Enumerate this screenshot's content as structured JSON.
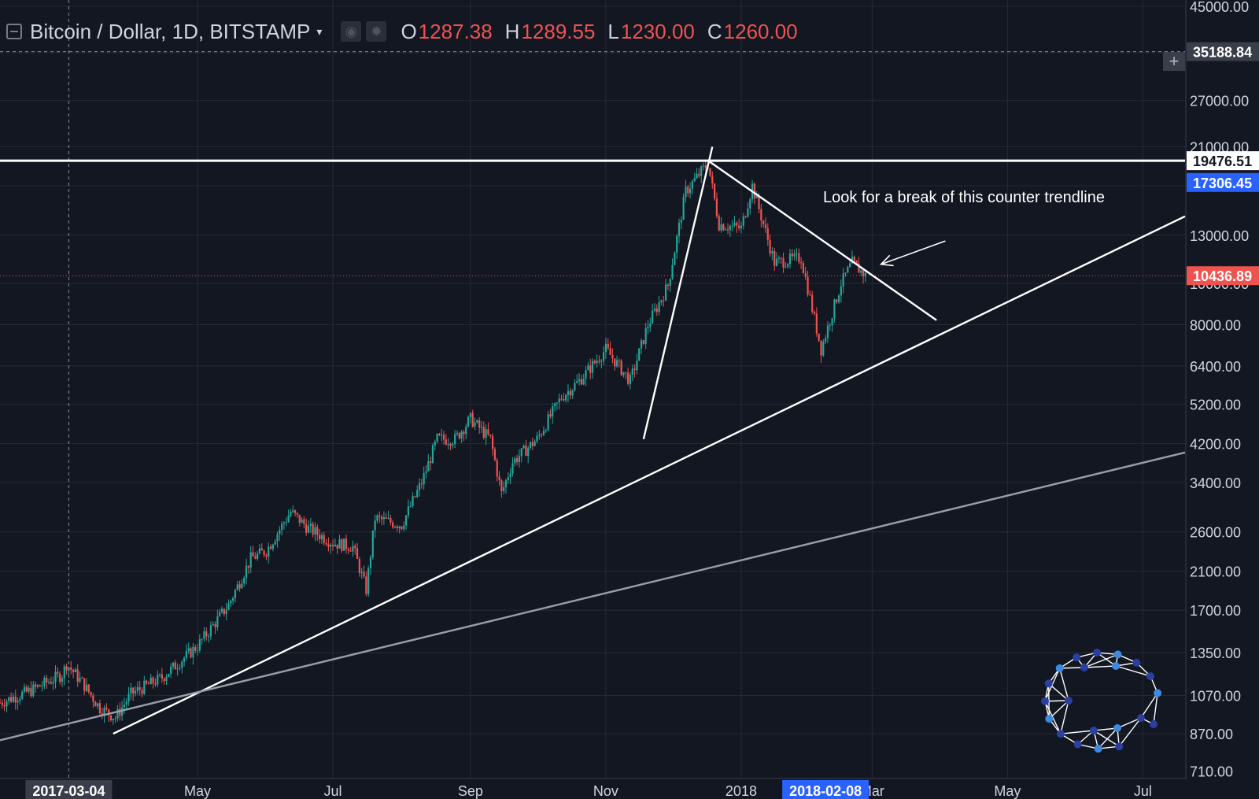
{
  "legend": {
    "symbol_title": "Bitcoin / Dollar, 1D, BITSTAMP",
    "caret": "▾",
    "icons": [
      "eye-icon",
      "gear-icon"
    ],
    "open_key": "O",
    "open_value": "1287.38",
    "high_key": "H",
    "high_value": "1289.55",
    "low_key": "L",
    "low_value": "1230.00",
    "close_key": "C",
    "close_value": "1260.00"
  },
  "crosshair": {
    "plus": "+"
  },
  "annotation": {
    "text": "Look for a break of this counter trendline"
  },
  "colors": {
    "background": "#131722",
    "grid": "#262a36",
    "up_candle": "#26a69a",
    "down_candle": "#ef5350",
    "trendline": "#ffffff",
    "long_trendline": "#9a9ea8",
    "price_line": "#ef5350",
    "highlight_label": "#2962ff"
  },
  "chart_data": {
    "type": "candlestick",
    "symbol": "Bitcoin / Dollar",
    "interval": "1D",
    "exchange": "BITSTAMP",
    "scale": "log",
    "ylim": [
      700,
      45000
    ],
    "xlim": [
      "2017-02-01",
      "2018-07-20"
    ],
    "grid": true,
    "y_axis_side": "right",
    "y_ticks": [
      870,
      1070,
      1350,
      1700,
      2100,
      2600,
      3400,
      4200,
      5200,
      6400,
      8000,
      10000,
      13000,
      17000,
      21000,
      27000,
      35000,
      45000
    ],
    "y_tick_labels": [
      "870.00",
      "1070.00",
      "1350.00",
      "1700.00",
      "2100.00",
      "2600.00",
      "3400.00",
      "4200.00",
      "5200.00",
      "6400.00",
      "8000.00",
      "10000.00",
      "13000.00",
      "17000.00",
      "21000.00",
      "27000.00",
      "35000.00",
      "45000.00"
    ],
    "y_labels_partial": [
      {
        "value": 710,
        "label": "710.00"
      }
    ],
    "x_ticks": [
      {
        "date": "2017-05-01",
        "label": "May"
      },
      {
        "date": "2017-07-01",
        "label": "Jul"
      },
      {
        "date": "2017-09-01",
        "label": "Sep"
      },
      {
        "date": "2017-11-01",
        "label": "Nov"
      },
      {
        "date": "2018-01-01",
        "label": "2018"
      },
      {
        "date": "2018-03-01",
        "label": "Mar"
      },
      {
        "date": "2018-05-01",
        "label": "May"
      },
      {
        "date": "2018-07-01",
        "label": "Jul"
      }
    ],
    "price_labels": [
      {
        "value": 35188.84,
        "label": "35188.84",
        "role": "crosshair"
      },
      {
        "value": 19476.51,
        "label": "19476.51",
        "role": "resistance-line"
      },
      {
        "value": 17306.45,
        "label": "17306.45",
        "role": "highlight"
      },
      {
        "value": 10436.89,
        "label": "10436.89",
        "role": "last-price"
      }
    ],
    "date_labels": [
      {
        "date": "2017-03-04",
        "label": "2017-03-04"
      },
      {
        "date": "2018-02-08",
        "label": "2018-02-08"
      }
    ],
    "crosshair": {
      "date": "2017-03-04",
      "price": 35188.84
    },
    "series": [
      {
        "name": "Bitcoin / Dollar",
        "data": [
          {
            "date": "2017-02-01",
            "close": 1030
          },
          {
            "date": "2017-02-15",
            "close": 1100
          },
          {
            "date": "2017-03-01",
            "close": 1200
          },
          {
            "date": "2017-03-03",
            "close": 1270
          },
          {
            "date": "2017-03-10",
            "close": 1150
          },
          {
            "date": "2017-03-18",
            "close": 1000
          },
          {
            "date": "2017-03-25",
            "close": 950
          },
          {
            "date": "2017-04-01",
            "close": 1080
          },
          {
            "date": "2017-04-15",
            "close": 1180
          },
          {
            "date": "2017-05-01",
            "close": 1400
          },
          {
            "date": "2017-05-15",
            "close": 1750
          },
          {
            "date": "2017-05-25",
            "close": 2250
          },
          {
            "date": "2017-06-01",
            "close": 2350
          },
          {
            "date": "2017-06-12",
            "close": 2900
          },
          {
            "date": "2017-06-20",
            "close": 2650
          },
          {
            "date": "2017-07-01",
            "close": 2450
          },
          {
            "date": "2017-07-10",
            "close": 2400
          },
          {
            "date": "2017-07-16",
            "close": 1900
          },
          {
            "date": "2017-07-20",
            "close": 2800
          },
          {
            "date": "2017-08-01",
            "close": 2700
          },
          {
            "date": "2017-08-10",
            "close": 3400
          },
          {
            "date": "2017-08-17",
            "close": 4300
          },
          {
            "date": "2017-08-25",
            "close": 4300
          },
          {
            "date": "2017-09-01",
            "close": 4800
          },
          {
            "date": "2017-09-10",
            "close": 4300
          },
          {
            "date": "2017-09-15",
            "close": 3200
          },
          {
            "date": "2017-09-20",
            "close": 3800
          },
          {
            "date": "2017-10-01",
            "close": 4300
          },
          {
            "date": "2017-10-12",
            "close": 5400
          },
          {
            "date": "2017-10-20",
            "close": 5900
          },
          {
            "date": "2017-11-01",
            "close": 7000
          },
          {
            "date": "2017-11-12",
            "close": 5900
          },
          {
            "date": "2017-11-20",
            "close": 8000
          },
          {
            "date": "2017-11-29",
            "close": 9900
          },
          {
            "date": "2017-12-07",
            "close": 16500
          },
          {
            "date": "2017-12-17",
            "close": 19200
          },
          {
            "date": "2017-12-22",
            "close": 13800
          },
          {
            "date": "2018-01-01",
            "close": 13500
          },
          {
            "date": "2018-01-06",
            "close": 17000
          },
          {
            "date": "2018-01-16",
            "close": 11200
          },
          {
            "date": "2018-01-28",
            "close": 11500
          },
          {
            "date": "2018-02-06",
            "close": 7000
          },
          {
            "date": "2018-02-15",
            "close": 10000
          },
          {
            "date": "2018-02-20",
            "close": 11200
          },
          {
            "date": "2018-02-26",
            "close": 10436.89
          }
        ]
      }
    ],
    "drawings": [
      {
        "kind": "horizontal-line",
        "name": "resistance-line",
        "price": 19476.51
      },
      {
        "kind": "trendline",
        "name": "long-support-trendline",
        "from": {
          "date": "2017-03-24",
          "price": 870
        },
        "to": {
          "date": "2018-07-20",
          "price": 14400
        }
      },
      {
        "kind": "trendline",
        "name": "counter-trendline",
        "from": {
          "date": "2017-12-17",
          "price": 19500
        },
        "to": {
          "date": "2018-03-30",
          "price": 8200
        }
      },
      {
        "kind": "trendline",
        "name": "parabolic-trendline",
        "from": {
          "date": "2017-11-18",
          "price": 4300
        },
        "to": {
          "date": "2017-12-19",
          "price": 21000
        }
      },
      {
        "kind": "trendline",
        "name": "lower-channel-line",
        "from": {
          "date": "2017-02-01",
          "price": 840
        },
        "to": {
          "date": "2018-07-20",
          "price": 4000
        }
      },
      {
        "kind": "arrow",
        "name": "annotation-arrow",
        "from": {
          "date": "2018-04-03",
          "price": 12600
        },
        "to": {
          "date": "2018-03-05",
          "price": 11100
        }
      }
    ]
  }
}
